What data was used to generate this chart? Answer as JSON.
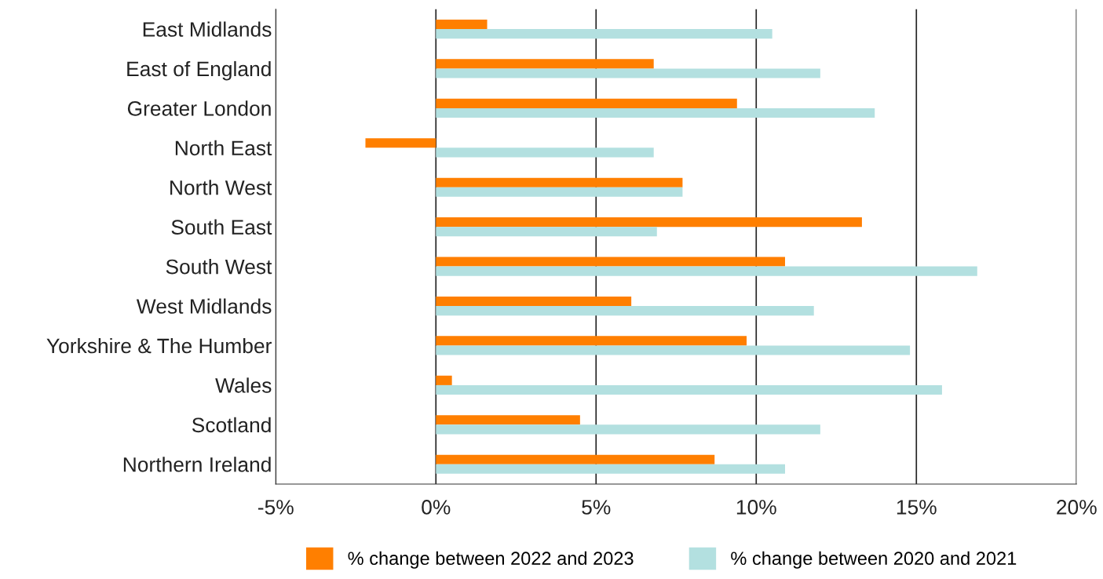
{
  "chart_data": {
    "type": "bar",
    "orientation": "horizontal",
    "categories": [
      "East Midlands",
      "East of England",
      "Greater London",
      "North East",
      "North West",
      "South East",
      "South West",
      "West Midlands",
      "Yorkshire & The Humber",
      "Wales",
      "Scotland",
      "Northern Ireland"
    ],
    "series": [
      {
        "name": "% change between 2022 and 2023",
        "color": "#ff7f00",
        "values": [
          1.6,
          6.8,
          9.4,
          -2.2,
          7.7,
          13.3,
          10.9,
          6.1,
          9.7,
          0.5,
          4.5,
          8.7
        ]
      },
      {
        "name": "% change between 2020 and 2021",
        "color": "#b3e0e0",
        "values": [
          10.5,
          12.0,
          13.7,
          6.8,
          7.7,
          6.9,
          16.9,
          11.8,
          14.8,
          15.8,
          12.0,
          10.9
        ]
      }
    ],
    "xlim": [
      -5,
      20
    ],
    "xticks": [
      {
        "value": -5,
        "label": "-5%"
      },
      {
        "value": 0,
        "label": "0%"
      },
      {
        "value": 5,
        "label": "5%"
      },
      {
        "value": 10,
        "label": "10%"
      },
      {
        "value": 15,
        "label": "15%"
      },
      {
        "value": 20,
        "label": "20%"
      }
    ],
    "grid": "x",
    "legend": "bottom"
  }
}
